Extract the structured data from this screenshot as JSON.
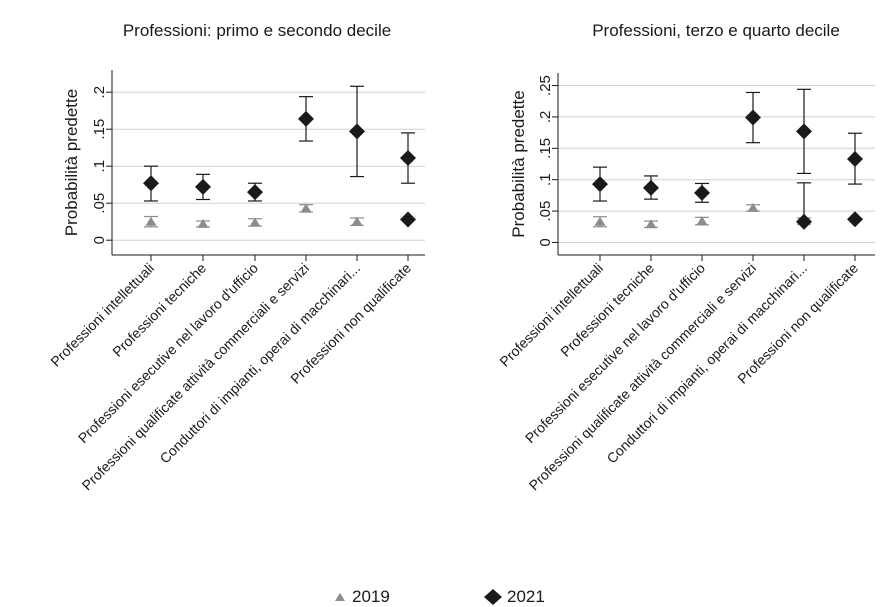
{
  "chart_data": [
    {
      "type": "scatter",
      "title": "Professioni: primo e secondo decile",
      "ylabel": "Probabilità predette",
      "ylim": [
        -0.02,
        0.23
      ],
      "yticks": [
        0,
        0.05,
        0.1,
        0.15,
        0.2
      ],
      "yticklabels": [
        "0",
        ".05",
        ".1",
        ".15",
        ".2"
      ],
      "grid": true,
      "categories": [
        "Professioni intellettuali",
        "Professioni tecniche",
        "Professioni esecutive nel lavoro d'ufficio",
        "Professioni qualificate attività commerciali e servizi",
        "Conduttori di impianti, operai di macchinari...",
        "Professioni non qualificate"
      ],
      "series": [
        {
          "name": "2019",
          "values": [
            0.025,
            0.022,
            0.024,
            0.043,
            0.025,
            null
          ],
          "ci_low": [
            0.018,
            0.018,
            0.019,
            0.038,
            0.02,
            null
          ],
          "ci_high": [
            0.032,
            0.026,
            0.029,
            0.048,
            0.03,
            null
          ]
        },
        {
          "name": "2021",
          "values": [
            0.077,
            0.072,
            0.065,
            0.164,
            0.147,
            0.111
          ],
          "ci_low": [
            0.053,
            0.055,
            0.053,
            0.134,
            0.086,
            0.077
          ],
          "ci_high": [
            0.1,
            0.089,
            0.077,
            0.194,
            0.208,
            0.145
          ]
        },
        {
          "name": "2021",
          "values": [
            null,
            null,
            null,
            null,
            null,
            0.028
          ],
          "ci_low": [
            null,
            null,
            null,
            null,
            null,
            null
          ],
          "ci_high": [
            null,
            null,
            null,
            null,
            null,
            null
          ]
        }
      ]
    },
    {
      "type": "scatter",
      "title": "Professioni, terzo e quarto decile",
      "ylabel": "Probabilità predette",
      "ylim": [
        -0.02,
        0.27
      ],
      "yticks": [
        0,
        0.05,
        0.1,
        0.15,
        0.2,
        0.25
      ],
      "yticklabels": [
        "0",
        ".05",
        ".1",
        ".15",
        ".2",
        ".25"
      ],
      "grid": true,
      "categories": [
        "Professioni intellettuali",
        "Professioni tecniche",
        "Professioni esecutive nel lavoro d'ufficio",
        "Professioni qualificate attività commerciali e servizi",
        "Conduttori di impianti, operai di macchinari...",
        "Professioni non qualificate"
      ],
      "series": [
        {
          "name": "2019",
          "values": [
            0.033,
            0.029,
            0.034,
            0.055,
            0.034,
            null
          ],
          "ci_low": [
            0.025,
            0.024,
            0.028,
            0.05,
            0.029,
            null
          ],
          "ci_high": [
            0.041,
            0.034,
            0.04,
            0.06,
            0.039,
            null
          ]
        },
        {
          "name": "2021",
          "values": [
            0.093,
            0.087,
            0.079,
            0.199,
            0.177,
            0.133
          ],
          "ci_low": [
            0.066,
            0.069,
            0.064,
            0.159,
            0.11,
            0.093
          ],
          "ci_high": [
            0.12,
            0.106,
            0.094,
            0.239,
            0.244,
            0.174
          ]
        },
        {
          "name": "2021",
          "values": [
            null,
            null,
            null,
            null,
            0.033,
            0.037
          ],
          "ci_low": [
            null,
            null,
            null,
            null,
            null,
            null
          ],
          "ci_high": [
            null,
            null,
            null,
            null,
            0.095,
            null
          ]
        }
      ]
    }
  ],
  "legend": {
    "placement": "bottom-center",
    "items": [
      {
        "label": "2019",
        "marker": "triangle",
        "color": "#8c8c8c"
      },
      {
        "label": "2021",
        "marker": "diamond",
        "color": "#1a1a1a"
      }
    ]
  },
  "colors": {
    "s2019": "#8c8c8c",
    "s2021": "#1a1a1a",
    "grid": "#d0d0d0",
    "axis": "#1a1a1a"
  }
}
